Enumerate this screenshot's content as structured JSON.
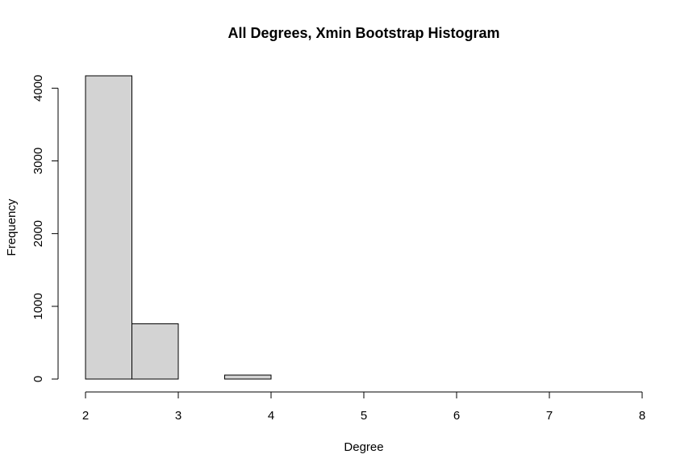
{
  "chart_data": {
    "type": "bar",
    "title": "All Degrees, Xmin Bootstrap Histogram",
    "xlabel": "Degree",
    "ylabel": "Frequency",
    "bins": [
      {
        "x0": 2.0,
        "x1": 2.5,
        "count": 4170
      },
      {
        "x0": 2.5,
        "x1": 3.0,
        "count": 760
      },
      {
        "x0": 3.0,
        "x1": 3.5,
        "count": 0
      },
      {
        "x0": 3.5,
        "x1": 4.0,
        "count": 55
      },
      {
        "x0": 4.0,
        "x1": 4.5,
        "count": 0
      },
      {
        "x0": 4.5,
        "x1": 5.0,
        "count": 0
      },
      {
        "x0": 5.0,
        "x1": 5.5,
        "count": 0
      },
      {
        "x0": 5.5,
        "x1": 6.0,
        "count": 0
      },
      {
        "x0": 6.0,
        "x1": 6.5,
        "count": 0
      },
      {
        "x0": 6.5,
        "x1": 7.0,
        "count": 0
      },
      {
        "x0": 7.0,
        "x1": 7.5,
        "count": 0
      },
      {
        "x0": 7.5,
        "x1": 8.0,
        "count": 0
      }
    ],
    "xlim": [
      2,
      8
    ],
    "ylim": [
      0,
      4170
    ],
    "x_ticks": [
      2,
      3,
      4,
      5,
      6,
      7,
      8
    ],
    "y_ticks": [
      0,
      1000,
      2000,
      3000,
      4000
    ],
    "bar_color": "#d3d3d3",
    "grid": false,
    "legend": "none"
  }
}
